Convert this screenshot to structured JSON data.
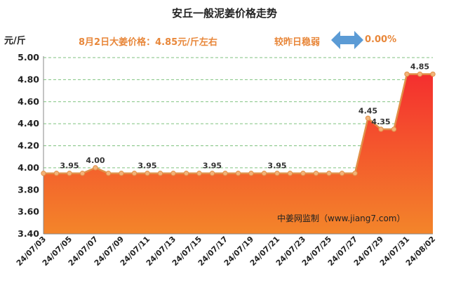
{
  "title": "安丘一般泥姜价格走势",
  "unit_label": "元/斤",
  "price_note": "8月2日大姜价格：4.85元/斤左右",
  "trend_note": "较昨日稳弱",
  "trend_arrow_icon": "left-right-arrow-icon",
  "change_pct": "0.00%",
  "watermark": "中姜网监制（www.jiang7.com）",
  "colors": {
    "line": "#e09048",
    "area_top": "#f42f2f",
    "area_bottom": "#f3852a",
    "arrow": "#5b9bd5",
    "grid": "#7fc27f"
  },
  "chart_data": {
    "type": "area",
    "title": "安丘一般泥姜价格走势",
    "ylabel": "元/斤",
    "xlabel": "",
    "ylim": [
      3.4,
      5.0
    ],
    "yticks": [
      3.4,
      3.6,
      3.8,
      4.0,
      4.2,
      4.4,
      4.6,
      4.8,
      5.0
    ],
    "ytick_labels": [
      "3.40",
      "3.60",
      "3.80",
      "4.00",
      "4.20",
      "4.40",
      "4.60",
      "4.80",
      "5.00"
    ],
    "grid": true,
    "x": [
      "24/07/03",
      "24/07/04",
      "24/07/05",
      "24/07/06",
      "24/07/07",
      "24/07/08",
      "24/07/09",
      "24/07/10",
      "24/07/11",
      "24/07/12",
      "24/07/13",
      "24/07/14",
      "24/07/15",
      "24/07/16",
      "24/07/17",
      "24/07/18",
      "24/07/19",
      "24/07/20",
      "24/07/21",
      "24/07/22",
      "24/07/23",
      "24/07/24",
      "24/07/25",
      "24/07/26",
      "24/07/27",
      "24/07/28",
      "24/07/29",
      "24/07/30",
      "24/07/31",
      "24/08/01",
      "24/08/02"
    ],
    "xtick_labels": [
      "24/07/03",
      "24/07/05",
      "24/07/07",
      "24/07/09",
      "24/07/11",
      "24/07/13",
      "24/07/15",
      "24/07/17",
      "24/07/19",
      "24/07/21",
      "24/07/23",
      "24/07/25",
      "24/07/27",
      "24/07/29",
      "24/07/31",
      "24/08/02"
    ],
    "values": [
      3.95,
      3.95,
      3.95,
      3.95,
      4.0,
      3.95,
      3.95,
      3.95,
      3.95,
      3.95,
      3.95,
      3.95,
      3.95,
      3.95,
      3.95,
      3.95,
      3.95,
      3.95,
      3.95,
      3.95,
      3.95,
      3.95,
      3.95,
      3.95,
      3.95,
      4.45,
      4.35,
      4.35,
      4.85,
      4.85,
      4.85
    ],
    "data_labels": [
      {
        "x": "24/07/05",
        "text": "3.95"
      },
      {
        "x": "24/07/07",
        "text": "4.00"
      },
      {
        "x": "24/07/11",
        "text": "3.95"
      },
      {
        "x": "24/07/16",
        "text": "3.95"
      },
      {
        "x": "24/07/21",
        "text": "3.95"
      },
      {
        "x": "24/07/28",
        "text": "4.45"
      },
      {
        "x": "24/07/29",
        "text": "4.35"
      },
      {
        "x": "24/08/01",
        "text": "4.85"
      }
    ]
  }
}
